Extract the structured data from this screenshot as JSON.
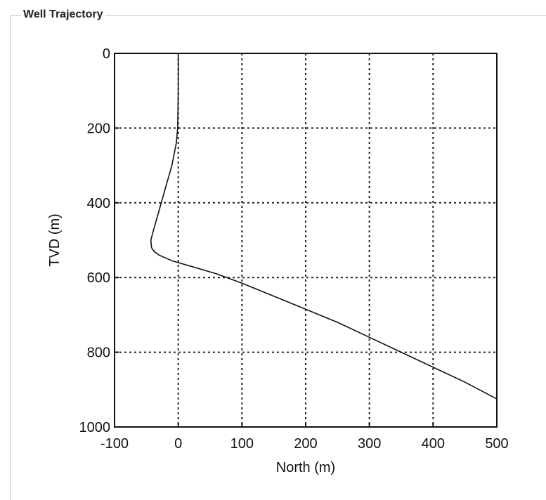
{
  "panel": {
    "title": "Well Trajectory"
  },
  "chart_data": {
    "type": "line",
    "xlabel": "North (m)",
    "ylabel": "TVD (m)",
    "xlim": [
      -100,
      500
    ],
    "ylim": [
      1000,
      0
    ],
    "y_reversed": true,
    "grid": true,
    "xticks": [
      -100,
      0,
      100,
      200,
      300,
      400,
      500
    ],
    "yticks": [
      0,
      200,
      400,
      600,
      800,
      1000
    ],
    "xtick_labels": [
      "-100",
      "0",
      "100",
      "200",
      "300",
      "400",
      "500"
    ],
    "ytick_labels": [
      "0",
      "200",
      "400",
      "600",
      "800",
      "1000"
    ],
    "series": [
      {
        "x": [
          0,
          0,
          -1,
          -3,
          -10,
          -20,
          -30,
          -40,
          -43,
          -42,
          -38,
          -30,
          -10,
          20,
          60,
          100,
          150,
          200,
          250,
          300,
          350,
          400,
          450,
          500
        ],
        "y": [
          0,
          100,
          200,
          240,
          300,
          360,
          420,
          480,
          500,
          520,
          530,
          540,
          555,
          570,
          590,
          615,
          650,
          685,
          720,
          760,
          800,
          840,
          880,
          925
        ]
      }
    ]
  }
}
